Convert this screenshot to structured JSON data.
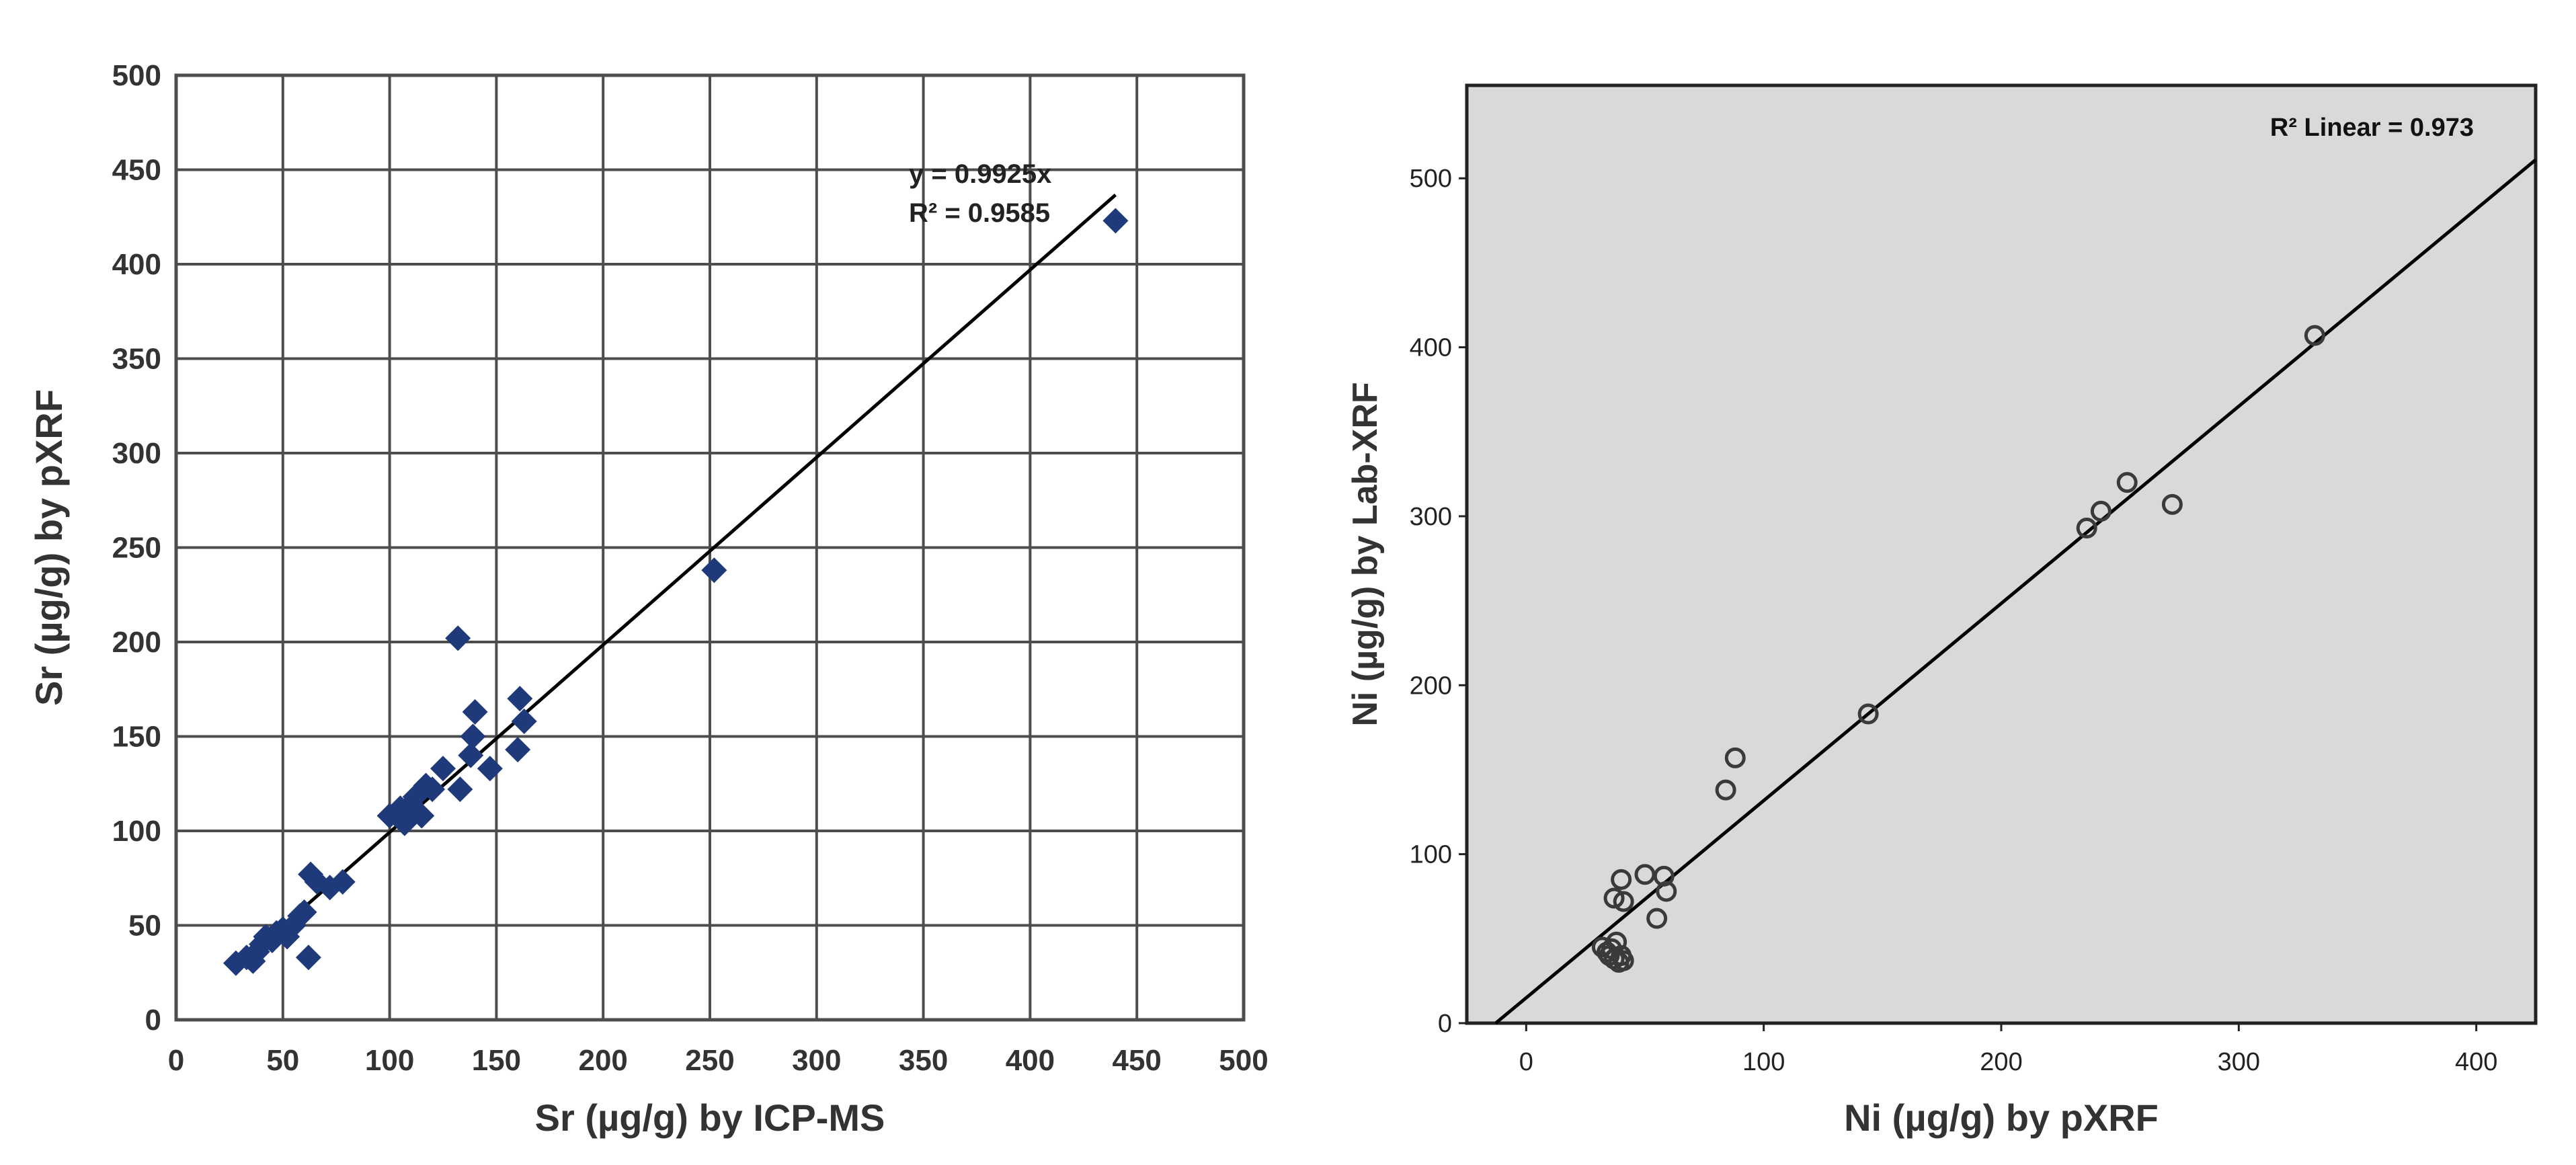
{
  "chart_data": [
    {
      "type": "scatter",
      "xlabel": "Sr (µg/g) by ICP-MS",
      "ylabel": "Sr (µg/g) by pXRF",
      "xlim": [
        0,
        500
      ],
      "ylim": [
        0,
        500
      ],
      "xticks": [
        0,
        50,
        100,
        150,
        200,
        250,
        300,
        350,
        400,
        450,
        500
      ],
      "yticks": [
        0,
        50,
        100,
        150,
        200,
        250,
        300,
        350,
        400,
        450,
        500
      ],
      "grid": true,
      "marker": "filled-diamond",
      "marker_color": "#1f3a7a",
      "trendline": {
        "slope": 0.9925,
        "intercept": 0,
        "x_range": [
          27,
          440
        ]
      },
      "annotations": {
        "equation": "y = 0.9925x",
        "r2": "R² = 0.9585"
      },
      "points": [
        {
          "x": 28,
          "y": 30
        },
        {
          "x": 33,
          "y": 33
        },
        {
          "x": 36,
          "y": 31
        },
        {
          "x": 38,
          "y": 36
        },
        {
          "x": 40,
          "y": 40
        },
        {
          "x": 42,
          "y": 44
        },
        {
          "x": 45,
          "y": 42
        },
        {
          "x": 47,
          "y": 46
        },
        {
          "x": 50,
          "y": 48
        },
        {
          "x": 52,
          "y": 44
        },
        {
          "x": 55,
          "y": 50
        },
        {
          "x": 58,
          "y": 55
        },
        {
          "x": 60,
          "y": 57
        },
        {
          "x": 62,
          "y": 33
        },
        {
          "x": 63,
          "y": 77
        },
        {
          "x": 66,
          "y": 73
        },
        {
          "x": 72,
          "y": 70
        },
        {
          "x": 78,
          "y": 73
        },
        {
          "x": 100,
          "y": 108
        },
        {
          "x": 105,
          "y": 112
        },
        {
          "x": 107,
          "y": 104
        },
        {
          "x": 110,
          "y": 114
        },
        {
          "x": 112,
          "y": 118
        },
        {
          "x": 115,
          "y": 108
        },
        {
          "x": 117,
          "y": 124
        },
        {
          "x": 120,
          "y": 122
        },
        {
          "x": 125,
          "y": 133
        },
        {
          "x": 132,
          "y": 202
        },
        {
          "x": 133,
          "y": 122
        },
        {
          "x": 138,
          "y": 140
        },
        {
          "x": 139,
          "y": 150
        },
        {
          "x": 140,
          "y": 163
        },
        {
          "x": 147,
          "y": 133
        },
        {
          "x": 160,
          "y": 143
        },
        {
          "x": 161,
          "y": 170
        },
        {
          "x": 163,
          "y": 158
        },
        {
          "x": 252,
          "y": 238
        },
        {
          "x": 440,
          "y": 423
        }
      ]
    },
    {
      "type": "scatter",
      "xlabel": "Ni (µg/g) by pXRF",
      "ylabel": "Ni (µg/g) by Lab-XRF",
      "xlim": [
        -25,
        425
      ],
      "ylim": [
        0,
        555
      ],
      "xticks": [
        0,
        100,
        200,
        300,
        400
      ],
      "yticks": [
        0,
        100,
        200,
        300,
        400,
        500
      ],
      "grid": false,
      "background": "#d9d9d9",
      "marker": "open-circle",
      "trendline": {
        "slope": 1.167,
        "intercept": 15,
        "x_range": [
          -12.9,
          425
        ]
      },
      "annotations": {
        "r2": "R² Linear = 0.973"
      },
      "points": [
        {
          "x": 32,
          "y": 45
        },
        {
          "x": 34,
          "y": 42
        },
        {
          "x": 35,
          "y": 40
        },
        {
          "x": 36,
          "y": 44
        },
        {
          "x": 37,
          "y": 38
        },
        {
          "x": 38,
          "y": 48
        },
        {
          "x": 39,
          "y": 36
        },
        {
          "x": 40,
          "y": 40
        },
        {
          "x": 41,
          "y": 37
        },
        {
          "x": 37,
          "y": 74
        },
        {
          "x": 40,
          "y": 85
        },
        {
          "x": 41,
          "y": 72
        },
        {
          "x": 50,
          "y": 88
        },
        {
          "x": 55,
          "y": 62
        },
        {
          "x": 58,
          "y": 87
        },
        {
          "x": 59,
          "y": 78
        },
        {
          "x": 84,
          "y": 138
        },
        {
          "x": 88,
          "y": 157
        },
        {
          "x": 144,
          "y": 183
        },
        {
          "x": 236,
          "y": 293
        },
        {
          "x": 242,
          "y": 303
        },
        {
          "x": 253,
          "y": 320
        },
        {
          "x": 272,
          "y": 307
        },
        {
          "x": 332,
          "y": 407
        }
      ]
    }
  ]
}
